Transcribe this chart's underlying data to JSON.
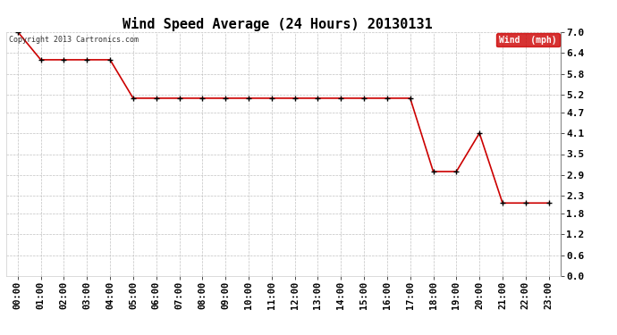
{
  "title": "Wind Speed Average (24 Hours) 20130131",
  "copyright_text": "Copyright 2013 Cartronics.com",
  "legend_label": "Wind  (mph)",
  "x_labels": [
    "00:00",
    "01:00",
    "02:00",
    "03:00",
    "04:00",
    "05:00",
    "06:00",
    "07:00",
    "08:00",
    "09:00",
    "10:00",
    "11:00",
    "12:00",
    "13:00",
    "14:00",
    "15:00",
    "16:00",
    "17:00",
    "18:00",
    "19:00",
    "20:00",
    "21:00",
    "22:00",
    "23:00"
  ],
  "y_values": [
    7.0,
    6.2,
    6.2,
    6.2,
    6.2,
    5.1,
    5.1,
    5.1,
    5.1,
    5.1,
    5.1,
    5.1,
    5.1,
    5.1,
    5.1,
    5.1,
    5.1,
    5.1,
    3.0,
    3.0,
    4.1,
    2.1,
    2.1,
    2.1
  ],
  "ylim": [
    0.0,
    7.0
  ],
  "yticks": [
    0.0,
    0.6,
    1.2,
    1.8,
    2.3,
    2.9,
    3.5,
    4.1,
    4.7,
    5.2,
    5.8,
    6.4,
    7.0
  ],
  "line_color": "#cc0000",
  "marker": "+",
  "marker_color": "#000000",
  "marker_size": 5,
  "background_color": "#ffffff",
  "grid_color": "#bbbbbb",
  "title_fontsize": 11,
  "tick_fontsize": 7.5,
  "copyright_fontsize": 6,
  "legend_bg": "#cc0000",
  "legend_fg": "#ffffff",
  "legend_fontsize": 7
}
